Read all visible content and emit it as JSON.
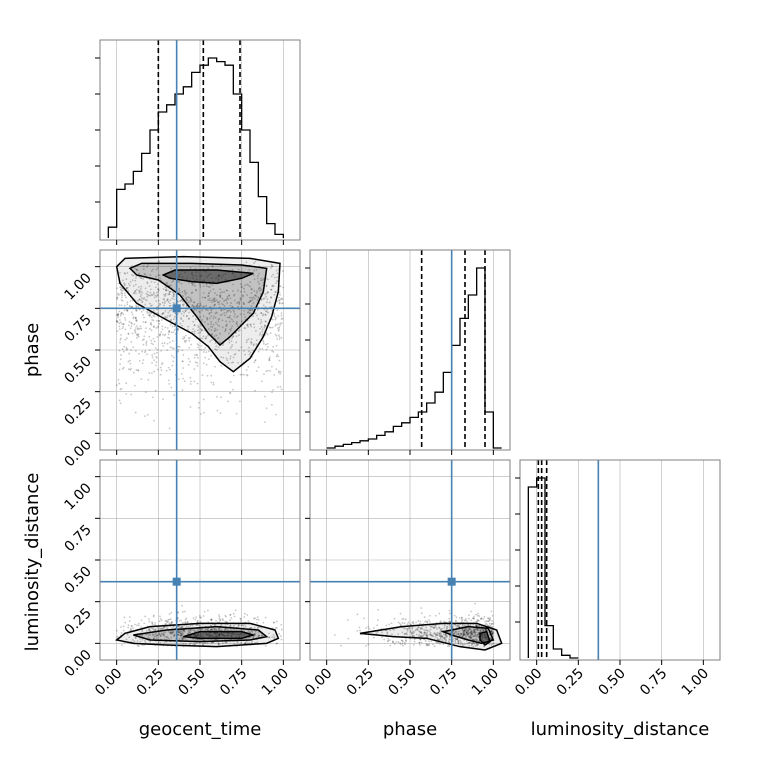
{
  "chart_data": {
    "type": "corner",
    "parameters": [
      "geocent_time",
      "phase",
      "luminosity_distance"
    ],
    "axis_range": [
      -0.1,
      1.1
    ],
    "ticks": [
      0.0,
      0.25,
      0.5,
      0.75,
      1.0
    ],
    "tick_labels": [
      "0.00",
      "0.25",
      "0.50",
      "0.75",
      "1.00"
    ],
    "truths": [
      0.36,
      0.75,
      0.37
    ],
    "colors": {
      "truth": "#4682b4",
      "hist": "#000000",
      "grid": "#b0b0b0",
      "density": "#000000",
      "contour": "#000000"
    },
    "grid": true,
    "histograms": [
      {
        "parameter": "geocent_time",
        "bin_edges": [
          -0.05,
          0.0,
          0.05,
          0.1,
          0.15,
          0.2,
          0.25,
          0.3,
          0.35,
          0.4,
          0.45,
          0.5,
          0.55,
          0.6,
          0.65,
          0.7,
          0.75,
          0.8,
          0.85,
          0.9,
          0.95,
          1.0
        ],
        "counts": [
          0.06,
          0.27,
          0.3,
          0.37,
          0.47,
          0.6,
          0.7,
          0.74,
          0.8,
          0.84,
          0.92,
          0.96,
          1.0,
          0.98,
          0.96,
          0.8,
          0.6,
          0.42,
          0.23,
          0.08,
          0.02
        ],
        "quantiles": [
          0.25,
          0.52,
          0.74
        ]
      },
      {
        "parameter": "phase",
        "bin_edges": [
          0.0,
          0.05,
          0.1,
          0.15,
          0.2,
          0.25,
          0.3,
          0.35,
          0.4,
          0.45,
          0.5,
          0.55,
          0.6,
          0.65,
          0.7,
          0.75,
          0.8,
          0.85,
          0.9,
          0.95,
          1.0,
          1.05
        ],
        "counts": [
          0.0,
          0.01,
          0.02,
          0.03,
          0.04,
          0.05,
          0.07,
          0.09,
          0.12,
          0.14,
          0.17,
          0.2,
          0.25,
          0.31,
          0.42,
          0.57,
          0.72,
          0.85,
          1.0,
          0.2,
          0.0
        ],
        "quantiles": [
          0.57,
          0.83,
          0.95
        ]
      },
      {
        "parameter": "luminosity_distance",
        "bin_edges": [
          -0.05,
          0.0,
          0.05,
          0.1,
          0.15,
          0.2,
          0.25
        ],
        "counts": [
          0.95,
          1.0,
          0.18,
          0.05,
          0.015,
          0.0
        ],
        "quantiles": [
          0.01,
          0.03,
          0.06
        ]
      }
    ],
    "pair_plots": [
      {
        "x": "geocent_time",
        "y": "phase",
        "contours": [
          [
            [
              0.0,
              1.0
            ],
            [
              0.05,
              1.05
            ],
            [
              0.4,
              1.06
            ],
            [
              0.8,
              1.05
            ],
            [
              0.98,
              1.02
            ],
            [
              0.97,
              0.85
            ],
            [
              0.93,
              0.7
            ],
            [
              0.88,
              0.58
            ],
            [
              0.8,
              0.45
            ],
            [
              0.7,
              0.37
            ],
            [
              0.62,
              0.43
            ],
            [
              0.55,
              0.52
            ],
            [
              0.45,
              0.6
            ],
            [
              0.3,
              0.68
            ],
            [
              0.12,
              0.78
            ],
            [
              0.02,
              0.9
            ]
          ],
          [
            [
              0.08,
              0.99
            ],
            [
              0.15,
              1.02
            ],
            [
              0.45,
              1.02
            ],
            [
              0.75,
              1.01
            ],
            [
              0.9,
              0.99
            ],
            [
              0.88,
              0.85
            ],
            [
              0.82,
              0.72
            ],
            [
              0.75,
              0.65
            ],
            [
              0.68,
              0.58
            ],
            [
              0.62,
              0.53
            ],
            [
              0.55,
              0.6
            ],
            [
              0.48,
              0.7
            ],
            [
              0.38,
              0.83
            ],
            [
              0.25,
              0.92
            ],
            [
              0.12,
              0.95
            ]
          ],
          [
            [
              0.28,
              0.95
            ],
            [
              0.35,
              0.98
            ],
            [
              0.6,
              0.98
            ],
            [
              0.82,
              0.96
            ],
            [
              0.75,
              0.93
            ],
            [
              0.6,
              0.9
            ],
            [
              0.45,
              0.91
            ],
            [
              0.32,
              0.93
            ]
          ]
        ]
      },
      {
        "x": "geocent_time",
        "y": "luminosity_distance",
        "contours": [
          [
            [
              0.0,
              0.02
            ],
            [
              0.05,
              0.06
            ],
            [
              0.2,
              0.1
            ],
            [
              0.5,
              0.12
            ],
            [
              0.8,
              0.12
            ],
            [
              0.95,
              0.08
            ],
            [
              0.97,
              0.03
            ],
            [
              0.9,
              0.0
            ],
            [
              0.6,
              -0.02
            ],
            [
              0.3,
              -0.01
            ],
            [
              0.1,
              0.0
            ]
          ],
          [
            [
              0.1,
              0.05
            ],
            [
              0.3,
              0.08
            ],
            [
              0.6,
              0.1
            ],
            [
              0.85,
              0.08
            ],
            [
              0.9,
              0.04
            ],
            [
              0.8,
              0.02
            ],
            [
              0.5,
              0.01
            ],
            [
              0.2,
              0.02
            ]
          ],
          [
            [
              0.4,
              0.04
            ],
            [
              0.5,
              0.07
            ],
            [
              0.75,
              0.07
            ],
            [
              0.82,
              0.05
            ],
            [
              0.75,
              0.03
            ],
            [
              0.5,
              0.03
            ]
          ]
        ]
      },
      {
        "x": "phase",
        "y": "luminosity_distance",
        "contours": [
          [
            [
              0.2,
              0.06
            ],
            [
              0.45,
              0.1
            ],
            [
              0.7,
              0.12
            ],
            [
              0.9,
              0.12
            ],
            [
              1.02,
              0.08
            ],
            [
              1.05,
              0.0
            ],
            [
              0.95,
              -0.04
            ],
            [
              0.8,
              -0.02
            ],
            [
              0.6,
              0.03
            ],
            [
              0.4,
              0.04
            ]
          ],
          [
            [
              0.7,
              0.07
            ],
            [
              0.85,
              0.1
            ],
            [
              0.97,
              0.09
            ],
            [
              1.0,
              0.02
            ],
            [
              0.93,
              0.0
            ],
            [
              0.85,
              0.02
            ],
            [
              0.75,
              0.05
            ]
          ],
          [
            [
              0.92,
              0.06
            ],
            [
              0.96,
              0.07
            ],
            [
              0.98,
              0.01
            ],
            [
              0.95,
              -0.01
            ],
            [
              0.92,
              0.02
            ]
          ]
        ]
      }
    ]
  }
}
